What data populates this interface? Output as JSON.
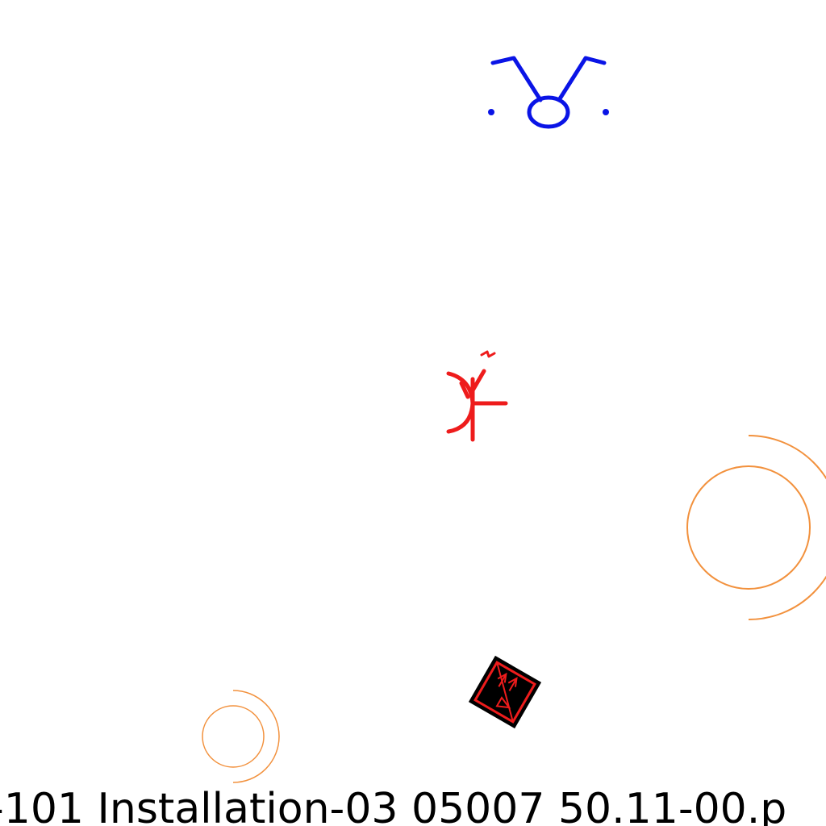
{
  "drawing": {
    "caption": "-101  Installation-03  05007  50.11-00.p"
  },
  "symbols": [
    {
      "name": "blue-lamp-symbol",
      "color": "#0a14e6"
    },
    {
      "name": "red-antenna-symbol",
      "color": "#ee1c1c"
    },
    {
      "name": "orange-large-arc-symbol",
      "color": "#f2913d"
    },
    {
      "name": "orange-small-arc-symbol",
      "color": "#f2913d"
    },
    {
      "name": "black-red-tilted-box-symbol",
      "fill": "#000000",
      "stroke": "#ee1c1c"
    }
  ]
}
